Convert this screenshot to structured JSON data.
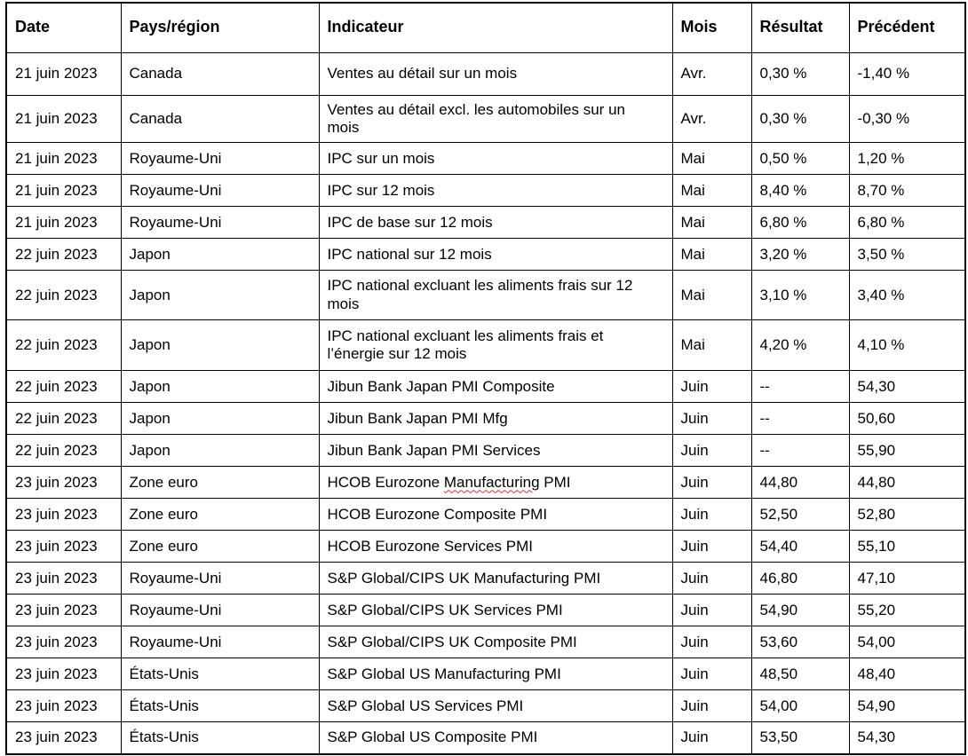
{
  "colors": {
    "background": "#ffffff",
    "text": "#000000",
    "table_border": "#000000",
    "spellcheck_underline": "#cc3333"
  },
  "table": {
    "columns": [
      {
        "key": "date",
        "label": "Date"
      },
      {
        "key": "region",
        "label": "Pays/région"
      },
      {
        "key": "indicator",
        "label": "Indicateur"
      },
      {
        "key": "month",
        "label": "Mois"
      },
      {
        "key": "result",
        "label": "Résultat"
      },
      {
        "key": "previous",
        "label": "Précédent"
      }
    ],
    "rows": [
      {
        "date": "21 juin 2023",
        "region": "Canada",
        "indicator": "Ventes au détail sur un mois",
        "month": "Avr.",
        "result": "0,30 %",
        "previous": "-1,40 %"
      },
      {
        "date": "21 juin 2023",
        "region": "Canada",
        "indicator": "Ventes au détail excl. les automobiles sur un mois",
        "month": "Avr.",
        "result": "0,30 %",
        "previous": "-0,30 %"
      },
      {
        "date": "21 juin 2023",
        "region": "Royaume-Uni",
        "indicator": "IPC sur un mois",
        "month": "Mai",
        "result": "0,50 %",
        "previous": "1,20 %"
      },
      {
        "date": "21 juin 2023",
        "region": "Royaume-Uni",
        "indicator": "IPC sur 12 mois",
        "month": "Mai",
        "result": "8,40 %",
        "previous": "8,70 %"
      },
      {
        "date": "21 juin 2023",
        "region": "Royaume-Uni",
        "indicator": "IPC de base sur 12 mois",
        "month": "Mai",
        "result": "6,80 %",
        "previous": "6,80 %"
      },
      {
        "date": "22 juin 2023",
        "region": "Japon",
        "indicator": "IPC national sur 12 mois",
        "month": "Mai",
        "result": "3,20 %",
        "previous": "3,50 %"
      },
      {
        "date": "22 juin 2023",
        "region": "Japon",
        "indicator": "IPC national excluant les aliments frais sur 12 mois",
        "month": "Mai",
        "result": "3,10 %",
        "previous": "3,40 %"
      },
      {
        "date": "22 juin 2023",
        "region": "Japon",
        "indicator": "IPC national excluant les aliments frais et l’énergie sur 12 mois",
        "month": "Mai",
        "result": "4,20 %",
        "previous": "4,10 %"
      },
      {
        "date": "22 juin 2023",
        "region": "Japon",
        "indicator": "Jibun Bank Japan PMI Composite",
        "month": "Juin",
        "result": "--",
        "previous": "54,30"
      },
      {
        "date": "22 juin 2023",
        "region": "Japon",
        "indicator": "Jibun Bank Japan PMI Mfg",
        "month": "Juin",
        "result": "--",
        "previous": "50,60"
      },
      {
        "date": "22 juin 2023",
        "region": "Japon",
        "indicator": "Jibun Bank Japan PMI Services",
        "month": "Juin",
        "result": "--",
        "previous": "55,90"
      },
      {
        "date": "23 juin 2023",
        "region": "Zone euro",
        "indicator": "HCOB Eurozone Manufacturing PMI",
        "spell_error_word": "Manufacturing",
        "month": "Juin",
        "result": "44,80",
        "previous": "44,80"
      },
      {
        "date": "23 juin 2023",
        "region": "Zone euro",
        "indicator": "HCOB Eurozone Composite PMI",
        "month": "Juin",
        "result": "52,50",
        "previous": "52,80"
      },
      {
        "date": "23 juin 2023",
        "region": "Zone euro",
        "indicator": "HCOB Eurozone Services PMI",
        "month": "Juin",
        "result": "54,40",
        "previous": "55,10"
      },
      {
        "date": "23 juin 2023",
        "region": "Royaume-Uni",
        "indicator": "S&P Global/CIPS UK Manufacturing PMI",
        "month": "Juin",
        "result": "46,80",
        "previous": "47,10"
      },
      {
        "date": "23 juin 2023",
        "region": "Royaume-Uni",
        "indicator": "S&P Global/CIPS UK Services PMI",
        "month": "Juin",
        "result": "54,90",
        "previous": "55,20"
      },
      {
        "date": "23 juin 2023",
        "region": "Royaume-Uni",
        "indicator": "S&P Global/CIPS UK Composite PMI",
        "month": "Juin",
        "result": "53,60",
        "previous": "54,00"
      },
      {
        "date": "23 juin 2023",
        "region": "États-Unis",
        "indicator": "S&P Global US Manufacturing PMI",
        "month": "Juin",
        "result": "48,50",
        "previous": "48,40"
      },
      {
        "date": "23 juin 2023",
        "region": "États-Unis",
        "indicator": "S&P Global US Services PMI",
        "month": "Juin",
        "result": "54,00",
        "previous": "54,90"
      },
      {
        "date": "23 juin 2023",
        "region": "États-Unis",
        "indicator": "S&P Global US Composite PMI",
        "month": "Juin",
        "result": "53,50",
        "previous": "54,30"
      }
    ]
  }
}
